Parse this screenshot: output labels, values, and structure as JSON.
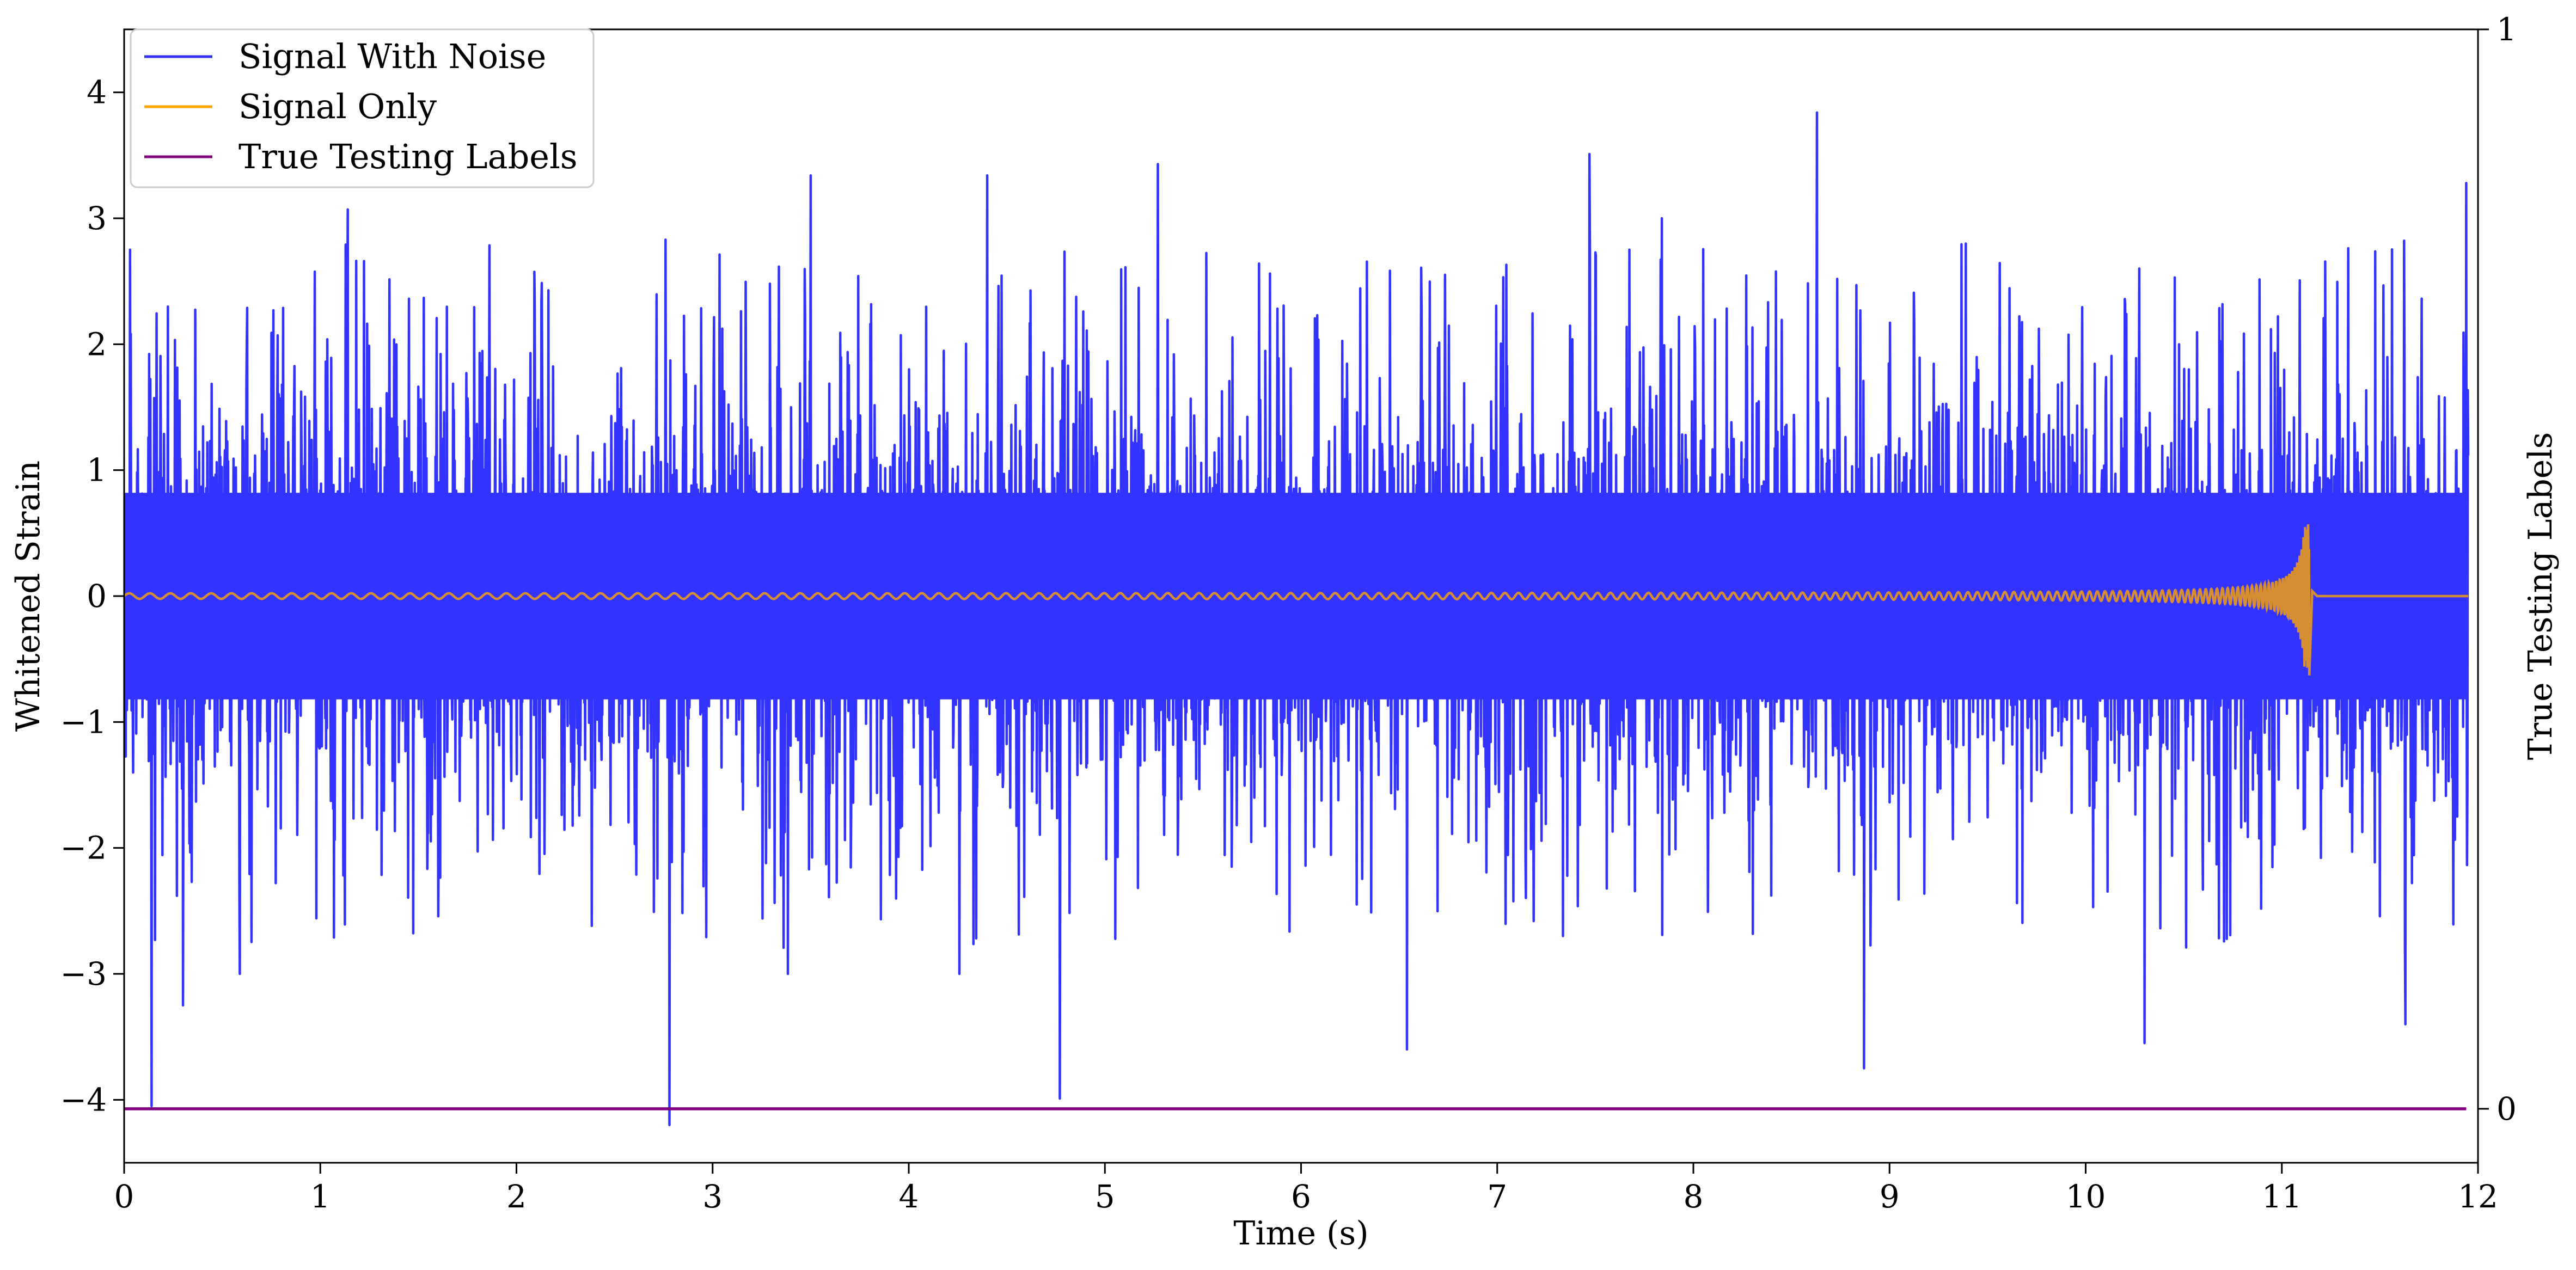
{
  "chart_data": {
    "type": "line",
    "title": "",
    "xlabel": "Time (s)",
    "ylabel": "Whitened Strain",
    "ylabel_right": "True Testing Labels",
    "xlim": [
      0,
      12
    ],
    "ylim": [
      -4.5,
      4.5
    ],
    "ylim_right": [
      -0.05,
      1.0
    ],
    "x_ticks": [
      0,
      1,
      2,
      3,
      4,
      5,
      6,
      7,
      8,
      9,
      10,
      11,
      12
    ],
    "x_tick_labels": [
      "0",
      "1",
      "2",
      "3",
      "4",
      "5",
      "6",
      "7",
      "8",
      "9",
      "10",
      "11",
      "12"
    ],
    "y_ticks": [
      -4,
      -3,
      -2,
      -1,
      0,
      1,
      2,
      3,
      4
    ],
    "y_tick_labels": [
      "−4",
      "−3",
      "−2",
      "−1",
      "0",
      "1",
      "2",
      "3",
      "4"
    ],
    "y_right_ticks": [
      0,
      1
    ],
    "y_right_tick_labels": [
      "0",
      "1"
    ],
    "grid": false,
    "legend_position": "top-left",
    "series": [
      {
        "name": "Signal With Noise",
        "color": "#3333ff",
        "axis": "left",
        "kind": "gaussian-noise",
        "x_range": [
          0,
          11.95
        ],
        "typical_amplitude": [
          -1.3,
          1.3
        ],
        "peaks": [
          {
            "x": 0.03,
            "y": 2.75
          },
          {
            "x": 0.14,
            "y": -4.05
          },
          {
            "x": 0.3,
            "y": -3.25
          },
          {
            "x": 1.14,
            "y": 3.07
          },
          {
            "x": 2.78,
            "y": -4.2
          },
          {
            "x": 2.76,
            "y": 2.83
          },
          {
            "x": 3.5,
            "y": 3.34
          },
          {
            "x": 4.4,
            "y": 3.34
          },
          {
            "x": 4.77,
            "y": -3.99
          },
          {
            "x": 5.27,
            "y": 3.43
          },
          {
            "x": 6.54,
            "y": -3.6
          },
          {
            "x": 7.47,
            "y": 3.51
          },
          {
            "x": 8.63,
            "y": 3.84
          },
          {
            "x": 8.87,
            "y": -3.75
          },
          {
            "x": 10.3,
            "y": -3.55
          },
          {
            "x": 11.63,
            "y": -3.4
          },
          {
            "x": 11.94,
            "y": 3.28
          }
        ]
      },
      {
        "name": "Signal Only",
        "color": "#ffa500",
        "axis": "left",
        "kind": "chirp",
        "merger_time": 11.14,
        "max_amplitude": 0.57,
        "min_amplitude": -0.63,
        "start_amplitude": 0.02
      },
      {
        "name": "True Testing Labels",
        "color": "#800080",
        "axis": "right",
        "x": [
          0,
          11.94
        ],
        "y": [
          0,
          0
        ]
      }
    ]
  }
}
